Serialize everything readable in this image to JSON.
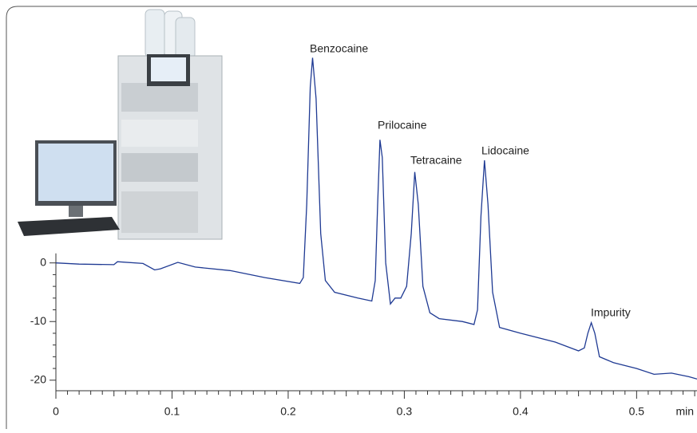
{
  "chart_data": {
    "type": "line",
    "annotations": [
      "Benzocaine",
      "Prilocaine",
      "Tetracaine",
      "Lidocaine",
      "Impurity"
    ],
    "x_label": "min",
    "x": [
      0,
      0.02,
      0.05,
      0.053,
      0.075,
      0.085,
      0.09,
      0.105,
      0.12,
      0.15,
      0.18,
      0.21,
      0.213,
      0.216,
      0.219,
      0.221,
      0.224,
      0.228,
      0.232,
      0.24,
      0.26,
      0.272,
      0.275,
      0.277,
      0.279,
      0.281,
      0.284,
      0.288,
      0.292,
      0.297,
      0.302,
      0.306,
      0.309,
      0.312,
      0.316,
      0.322,
      0.33,
      0.35,
      0.36,
      0.363,
      0.366,
      0.369,
      0.372,
      0.376,
      0.382,
      0.4,
      0.43,
      0.45,
      0.455,
      0.458,
      0.461,
      0.464,
      0.468,
      0.48,
      0.5,
      0.515,
      0.53,
      0.545,
      0.552
    ],
    "values": [
      0,
      -0.2,
      -0.3,
      0.2,
      -0.1,
      -1.2,
      -1.0,
      0.1,
      -0.7,
      -1.3,
      -2.5,
      -3.5,
      -2.5,
      10,
      30,
      35,
      28,
      5,
      -3,
      -5,
      -6,
      -6.5,
      -3,
      10,
      21,
      18,
      0,
      -7,
      -6,
      -6,
      -4,
      5,
      15.5,
      10,
      -4,
      -8.5,
      -9.5,
      -10,
      -10.5,
      -8,
      8,
      17.5,
      10,
      -5,
      -11,
      -12,
      -13.5,
      -15,
      -14.5,
      -12,
      -10.2,
      -12,
      -16,
      -17,
      -18,
      -19,
      -18.8,
      -19.4,
      -19.8
    ],
    "color": "#1f3a93",
    "xlim": [
      0,
      0.552
    ],
    "xticks": [
      0,
      0.1,
      0.2,
      0.3,
      0.4,
      0.5
    ],
    "ylim": [
      -21.8,
      36
    ],
    "yticks": [
      0,
      -10,
      -20
    ]
  }
}
